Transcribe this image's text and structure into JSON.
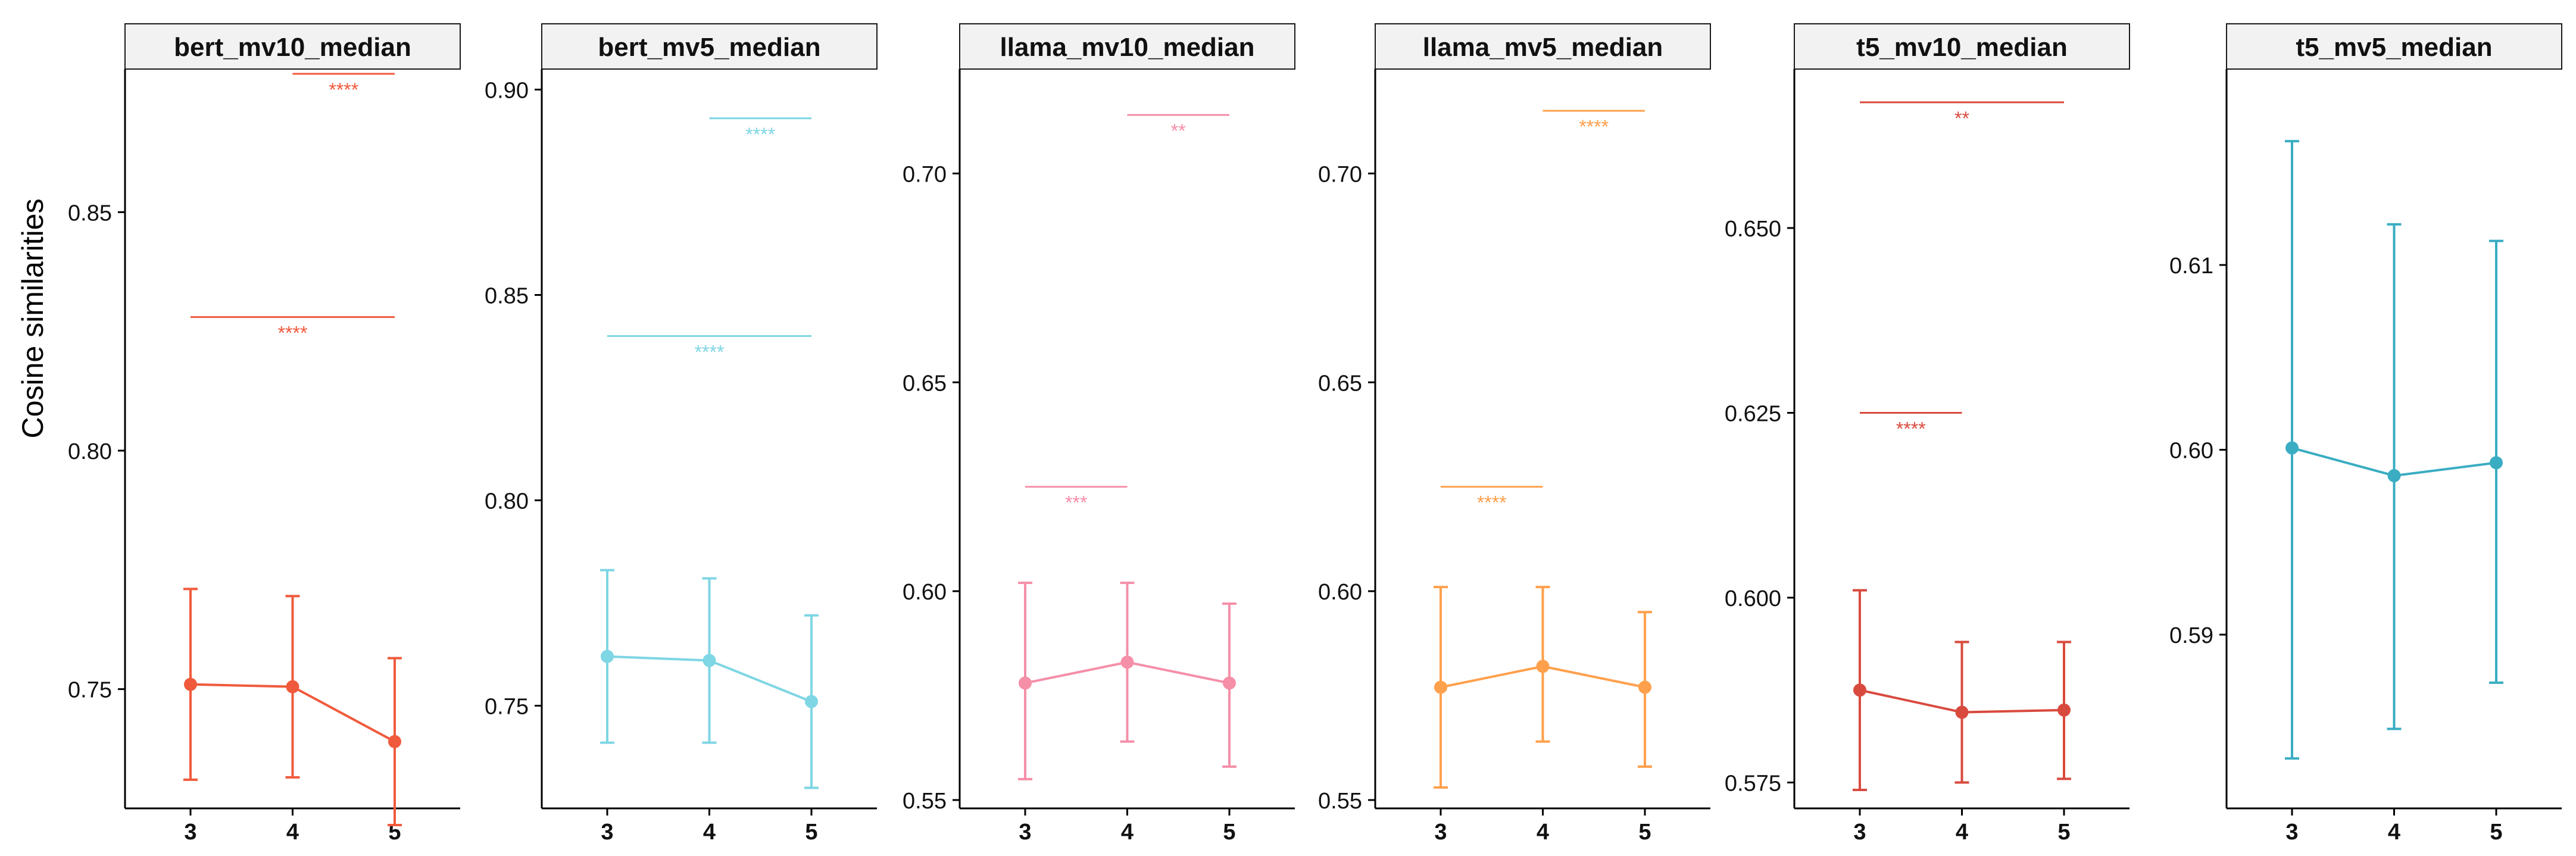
{
  "ylabel": "Cosine similarities",
  "chart_data": [
    {
      "type": "line",
      "title": "bert_mv10_median",
      "color": "#F05A3C",
      "x": [
        3,
        4,
        5
      ],
      "y": [
        0.751,
        0.7505,
        0.739
      ],
      "err_low": [
        0.731,
        0.7315,
        0.7215
      ],
      "err_high": [
        0.771,
        0.7695,
        0.7565
      ],
      "ylim": [
        0.725,
        0.88
      ],
      "yticks": [
        "0.75",
        "0.80",
        "0.85"
      ],
      "yticks_values": [
        0.75,
        0.8,
        0.85
      ],
      "brackets": [
        {
          "from": 4,
          "to": 5,
          "y": 0.879,
          "label": "****"
        },
        {
          "from": 3,
          "to": 5,
          "y": 0.828,
          "label": "****"
        }
      ]
    },
    {
      "type": "line",
      "title": "bert_mv5_median",
      "color": "#7FD6E4",
      "x": [
        3,
        4,
        5
      ],
      "y": [
        0.762,
        0.761,
        0.751
      ],
      "err_low": [
        0.741,
        0.741,
        0.73
      ],
      "err_high": [
        0.783,
        0.781,
        0.772
      ],
      "ylim": [
        0.725,
        0.905
      ],
      "yticks": [
        "0.75",
        "0.80",
        "0.85",
        "0.90"
      ],
      "yticks_values": [
        0.75,
        0.8,
        0.85,
        0.9
      ],
      "brackets": [
        {
          "from": 4,
          "to": 5,
          "y": 0.893,
          "label": "****"
        },
        {
          "from": 3,
          "to": 5,
          "y": 0.84,
          "label": "****"
        }
      ]
    },
    {
      "type": "line",
      "title": "llama_mv10_median",
      "color": "#F58FA8",
      "x": [
        3,
        4,
        5
      ],
      "y": [
        0.578,
        0.583,
        0.578
      ],
      "err_low": [
        0.555,
        0.564,
        0.558
      ],
      "err_high": [
        0.602,
        0.602,
        0.597
      ],
      "ylim": [
        0.548,
        0.725
      ],
      "yticks": [
        "0.55",
        "0.60",
        "0.65",
        "0.70"
      ],
      "yticks_values": [
        0.55,
        0.6,
        0.65,
        0.7
      ],
      "brackets": [
        {
          "from": 4,
          "to": 5,
          "y": 0.714,
          "label": "**"
        },
        {
          "from": 3,
          "to": 4,
          "y": 0.625,
          "label": "***"
        }
      ]
    },
    {
      "type": "line",
      "title": "llama_mv5_median",
      "color": "#FFA04C",
      "x": [
        3,
        4,
        5
      ],
      "y": [
        0.577,
        0.582,
        0.577
      ],
      "err_low": [
        0.553,
        0.564,
        0.558
      ],
      "err_high": [
        0.601,
        0.601,
        0.595
      ],
      "ylim": [
        0.548,
        0.725
      ],
      "yticks": [
        "0.55",
        "0.60",
        "0.65",
        "0.70"
      ],
      "yticks_values": [
        0.55,
        0.6,
        0.65,
        0.7
      ],
      "brackets": [
        {
          "from": 4,
          "to": 5,
          "y": 0.715,
          "label": "****"
        },
        {
          "from": 3,
          "to": 4,
          "y": 0.625,
          "label": "****"
        }
      ]
    },
    {
      "type": "line",
      "title": "t5_mv10_median",
      "color": "#D94A3E",
      "x": [
        3,
        4,
        5
      ],
      "y": [
        0.5875,
        0.5845,
        0.5848
      ],
      "err_low": [
        0.574,
        0.575,
        0.5755
      ],
      "err_high": [
        0.601,
        0.594,
        0.594
      ],
      "ylim": [
        0.5715,
        0.6715
      ],
      "yticks": [
        "0.575",
        "0.600",
        "0.625",
        "0.650"
      ],
      "yticks_values": [
        0.575,
        0.6,
        0.625,
        0.65
      ],
      "brackets": [
        {
          "from": 3,
          "to": 5,
          "y": 0.667,
          "label": "**"
        },
        {
          "from": 3,
          "to": 4,
          "y": 0.625,
          "label": "****"
        }
      ]
    },
    {
      "type": "line",
      "title": "t5_mv5_median",
      "color": "#3AADC2",
      "x": [
        3,
        4,
        5
      ],
      "y": [
        0.6001,
        0.5986,
        0.5993
      ],
      "err_low": [
        0.5833,
        0.5849,
        0.5874
      ],
      "err_high": [
        0.6167,
        0.6122,
        0.6113
      ],
      "ylim": [
        0.5806,
        0.6206
      ],
      "yticks": [
        "0.59",
        "0.60",
        "0.61"
      ],
      "yticks_values": [
        0.59,
        0.6,
        0.61
      ],
      "brackets": []
    }
  ]
}
